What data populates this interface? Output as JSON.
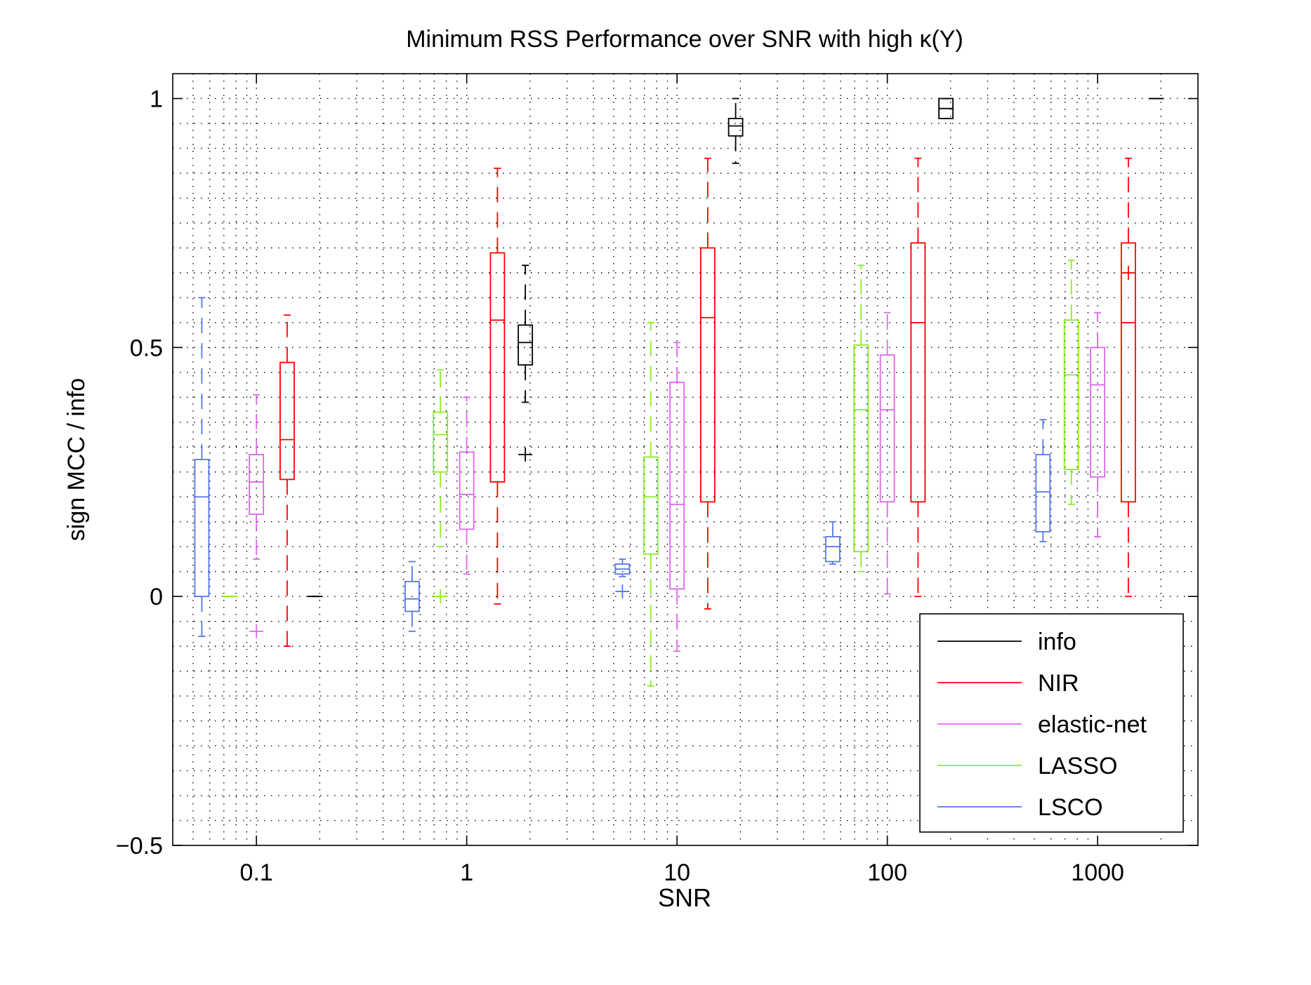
{
  "chart_data": {
    "type": "box",
    "title": "Minimum RSS Performance over SNR with high κ(Y)",
    "xlabel": "SNR",
    "ylabel": "sign MCC / info",
    "xscale": "log",
    "xlim": [
      0.04,
      3000
    ],
    "ylim": [
      -0.5,
      1.05
    ],
    "xticks": [
      0.1,
      1,
      10,
      100,
      1000
    ],
    "xtick_labels": [
      "0.1",
      "1",
      "10",
      "100",
      "1000"
    ],
    "yticks": [
      -0.5,
      0,
      0.5,
      1
    ],
    "ytick_labels": [
      "−0.5",
      "0",
      "0.5",
      "1"
    ],
    "grid": true,
    "legend_position": "bottom-right",
    "colors": {
      "info": "#000000",
      "NIR": "#ff0000",
      "elastic-net": "#dd66ee",
      "LASSO": "#88ee22",
      "LSCO": "#5577ee"
    },
    "legend": [
      "info",
      "NIR",
      "elastic-net",
      "LASSO",
      "LSCO"
    ],
    "boxes": [
      {
        "series": "LSCO",
        "x": 0.055,
        "lw": -0.08,
        "q1": 0.0,
        "med": 0.2,
        "q3": 0.275,
        "uw": 0.6,
        "outliers": []
      },
      {
        "series": "LASSO",
        "x": 0.075,
        "lw": 0.0,
        "q1": 0.0,
        "med": 0.0,
        "q3": 0.0,
        "uw": 0.0,
        "outliers": []
      },
      {
        "series": "elastic-net",
        "x": 0.1,
        "lw": 0.075,
        "q1": 0.165,
        "med": 0.23,
        "q3": 0.285,
        "uw": 0.405,
        "outliers": [
          -0.07
        ]
      },
      {
        "series": "NIR",
        "x": 0.14,
        "lw": -0.1,
        "q1": 0.235,
        "med": 0.315,
        "q3": 0.47,
        "uw": 0.565,
        "outliers": []
      },
      {
        "series": "info",
        "x": 0.19,
        "lw": 0.0,
        "q1": 0.0,
        "med": 0.0,
        "q3": 0.0,
        "uw": 0.0,
        "outliers": []
      },
      {
        "series": "LSCO",
        "x": 0.55,
        "lw": -0.07,
        "q1": -0.03,
        "med": -0.005,
        "q3": 0.03,
        "uw": 0.07,
        "outliers": []
      },
      {
        "series": "LASSO",
        "x": 0.75,
        "lw": 0.1,
        "q1": 0.25,
        "med": 0.325,
        "q3": 0.37,
        "uw": 0.455,
        "outliers": [
          0.0
        ]
      },
      {
        "series": "elastic-net",
        "x": 1.0,
        "lw": 0.045,
        "q1": 0.135,
        "med": 0.205,
        "q3": 0.29,
        "uw": 0.4,
        "outliers": []
      },
      {
        "series": "NIR",
        "x": 1.4,
        "lw": -0.015,
        "q1": 0.23,
        "med": 0.555,
        "q3": 0.69,
        "uw": 0.86,
        "outliers": []
      },
      {
        "series": "info",
        "x": 1.9,
        "lw": 0.39,
        "q1": 0.465,
        "med": 0.51,
        "q3": 0.545,
        "uw": 0.665,
        "outliers": [
          0.285
        ]
      },
      {
        "series": "LSCO",
        "x": 5.5,
        "lw": 0.04,
        "q1": 0.045,
        "med": 0.055,
        "q3": 0.065,
        "uw": 0.075,
        "outliers": [
          0.01
        ]
      },
      {
        "series": "LASSO",
        "x": 7.5,
        "lw": -0.18,
        "q1": 0.085,
        "med": 0.2,
        "q3": 0.28,
        "uw": 0.55,
        "outliers": []
      },
      {
        "series": "elastic-net",
        "x": 10,
        "lw": -0.11,
        "q1": 0.015,
        "med": 0.185,
        "q3": 0.43,
        "uw": 0.51,
        "outliers": []
      },
      {
        "series": "NIR",
        "x": 14,
        "lw": -0.025,
        "q1": 0.19,
        "med": 0.56,
        "q3": 0.7,
        "uw": 0.88,
        "outliers": []
      },
      {
        "series": "info",
        "x": 19,
        "lw": 0.87,
        "q1": 0.925,
        "med": 0.945,
        "q3": 0.96,
        "uw": 1.0,
        "outliers": []
      },
      {
        "series": "LSCO",
        "x": 55,
        "lw": 0.065,
        "q1": 0.07,
        "med": 0.1,
        "q3": 0.12,
        "uw": 0.15,
        "outliers": []
      },
      {
        "series": "LASSO",
        "x": 75,
        "lw": 0.05,
        "q1": 0.09,
        "med": 0.375,
        "q3": 0.505,
        "uw": 0.665,
        "outliers": []
      },
      {
        "series": "elastic-net",
        "x": 100,
        "lw": 0.005,
        "q1": 0.19,
        "med": 0.375,
        "q3": 0.485,
        "uw": 0.57,
        "outliers": []
      },
      {
        "series": "NIR",
        "x": 140,
        "lw": 0.0,
        "q1": 0.19,
        "med": 0.55,
        "q3": 0.71,
        "uw": 0.88,
        "outliers": []
      },
      {
        "series": "info",
        "x": 190,
        "lw": 0.96,
        "q1": 0.96,
        "med": 0.98,
        "q3": 1.0,
        "uw": 1.0,
        "outliers": []
      },
      {
        "series": "LSCO",
        "x": 550,
        "lw": 0.11,
        "q1": 0.13,
        "med": 0.21,
        "q3": 0.285,
        "uw": 0.355,
        "outliers": []
      },
      {
        "series": "LASSO",
        "x": 750,
        "lw": 0.185,
        "q1": 0.255,
        "med": 0.445,
        "q3": 0.555,
        "uw": 0.675,
        "outliers": []
      },
      {
        "series": "elastic-net",
        "x": 1000,
        "lw": 0.12,
        "q1": 0.24,
        "med": 0.425,
        "q3": 0.5,
        "uw": 0.57,
        "outliers": []
      },
      {
        "series": "NIR",
        "x": 1400,
        "lw": 0.0,
        "q1": 0.19,
        "med": 0.55,
        "q3": 0.71,
        "uw": 0.88,
        "outliers": [
          0.65
        ]
      },
      {
        "series": "info",
        "x": 1900,
        "lw": 1.0,
        "q1": 1.0,
        "med": 1.0,
        "q3": 1.0,
        "uw": 1.0,
        "outliers": []
      }
    ]
  }
}
